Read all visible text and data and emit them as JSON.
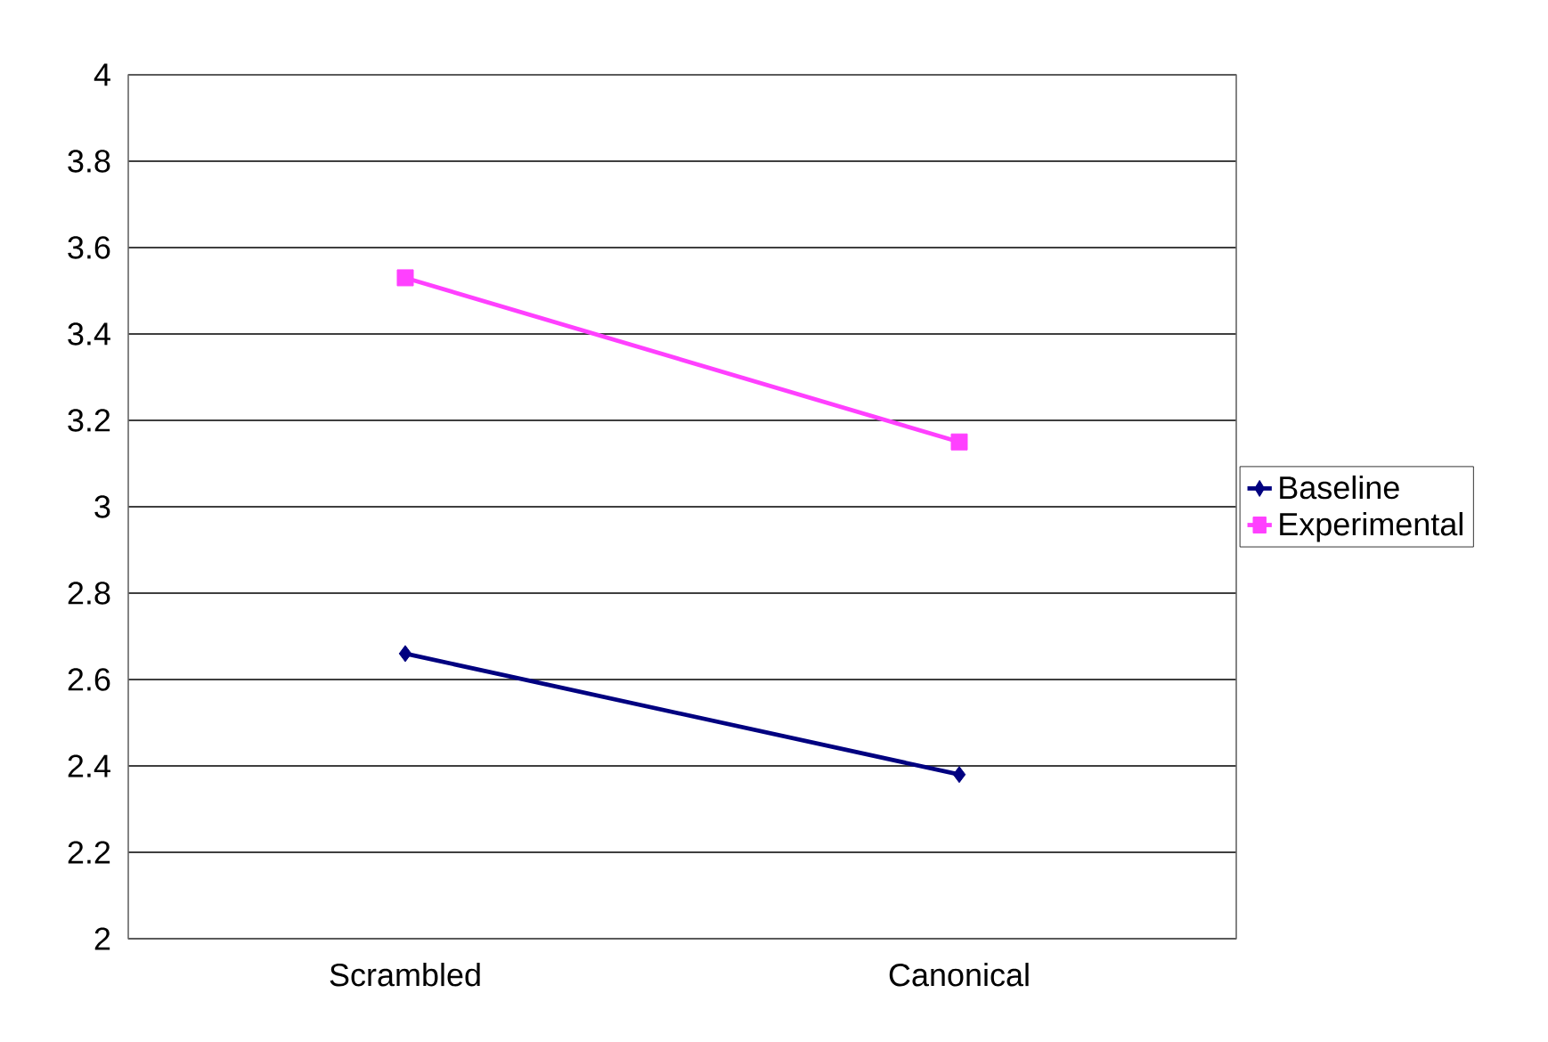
{
  "chart_data": {
    "type": "line",
    "categories": [
      "Scrambled",
      "Canonical"
    ],
    "series": [
      {
        "name": "Baseline",
        "color": "#000080",
        "marker": "diamond",
        "values": [
          2.66,
          2.38
        ]
      },
      {
        "name": "Experimental",
        "color": "#ff40ff",
        "marker": "square",
        "values": [
          3.53,
          3.15
        ]
      }
    ],
    "ylim": [
      2,
      4
    ],
    "yticks": [
      2,
      2.2,
      2.4,
      2.6,
      2.8,
      3,
      3.2,
      3.4,
      3.6,
      3.8,
      4
    ],
    "grid": "y",
    "legend": "right",
    "line_style": "solid"
  }
}
